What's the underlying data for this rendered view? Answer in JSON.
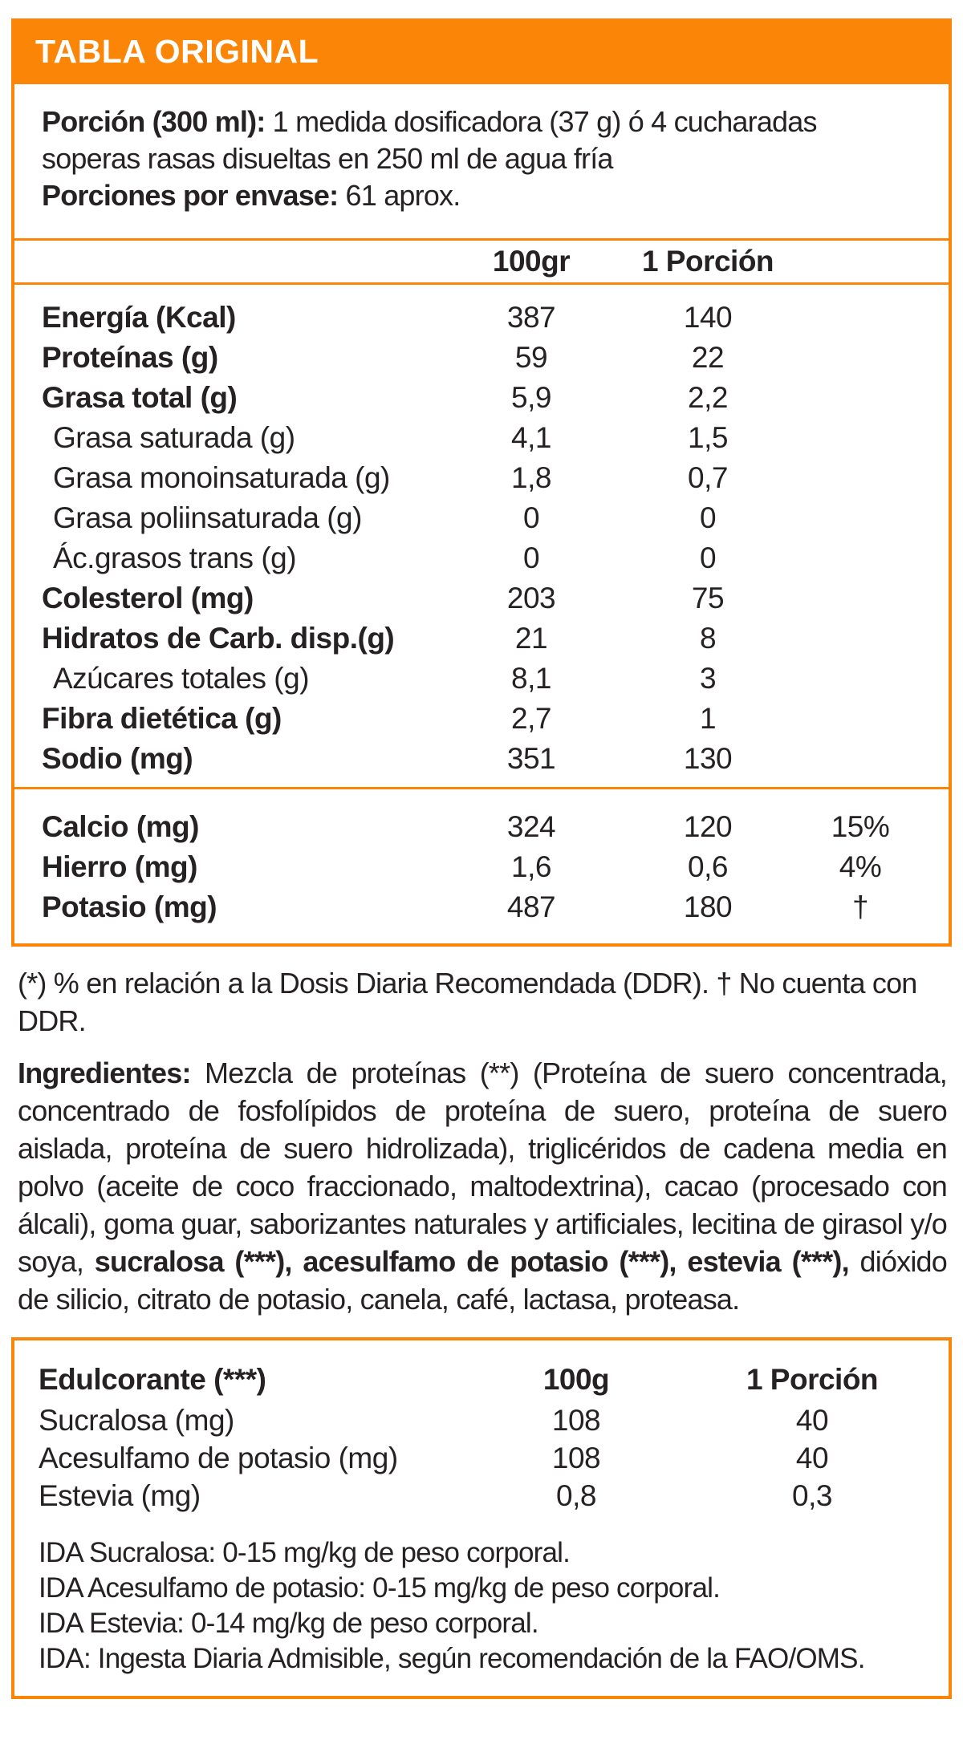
{
  "colors": {
    "accent_orange": "#FA8507",
    "text": "#262223",
    "header_text": "#FFFFFF"
  },
  "header": {
    "title": "TABLA ORIGINAL"
  },
  "serving_info": {
    "paragraphs": [
      [
        {
          "t": "Porción (300 ml):",
          "b": 1
        },
        {
          "t": " 1 medida dosificadora (37 g) ó 4 cucharadas soperas rasas disueltas en 250 ml de agua fría",
          "b": 0
        }
      ],
      [
        {
          "t": "Porciones por envase:",
          "b": 1
        },
        {
          "t": " 61 aprox.",
          "b": 0
        }
      ]
    ]
  },
  "nutrition_table": {
    "columns": {
      "per100": "100gr",
      "perServing": "1 Porción"
    },
    "rows": [
      {
        "label": "Energía (Kcal)",
        "per100": "387",
        "perServing": "140",
        "bold": true,
        "indent": false
      },
      {
        "label": "Proteínas (g)",
        "per100": "59",
        "perServing": "22",
        "bold": true,
        "indent": false
      },
      {
        "label": "Grasa total (g)",
        "per100": "5,9",
        "perServing": "2,2",
        "bold": true,
        "indent": false
      },
      {
        "label": "Grasa saturada (g)",
        "per100": "4,1",
        "perServing": "1,5",
        "bold": false,
        "indent": true
      },
      {
        "label": "Grasa monoinsaturada (g)",
        "per100": "1,8",
        "perServing": "0,7",
        "bold": false,
        "indent": true
      },
      {
        "label": "Grasa poliinsaturada (g)",
        "per100": "0",
        "perServing": "0",
        "bold": false,
        "indent": true
      },
      {
        "label": "Ác.grasos trans (g)",
        "per100": "0",
        "perServing": "0",
        "bold": false,
        "indent": true
      },
      {
        "label": "Colesterol (mg)",
        "per100": "203",
        "perServing": "75",
        "bold": true,
        "indent": false
      },
      {
        "label": "Hidratos de Carb. disp.(g)",
        "per100": "21",
        "perServing": "8",
        "bold": true,
        "indent": false
      },
      {
        "label": "Azúcares totales (g)",
        "per100": "8,1",
        "perServing": "3",
        "bold": false,
        "indent": true
      },
      {
        "label": "Fibra dietética (g)",
        "per100": "2,7",
        "perServing": "1",
        "bold": true,
        "indent": false
      },
      {
        "label": "Sodio (mg)",
        "per100": "351",
        "perServing": "130",
        "bold": true,
        "indent": false
      }
    ],
    "mineral_rows": [
      {
        "label": "Calcio (mg)",
        "per100": "324",
        "perServing": "120",
        "ddr": "15%",
        "bold": true
      },
      {
        "label": "Hierro (mg)",
        "per100": "1,6",
        "perServing": "0,6",
        "ddr": "4%",
        "bold": true
      },
      {
        "label": "Potasio (mg)",
        "per100": "487",
        "perServing": "180",
        "ddr": "†",
        "bold": true
      }
    ]
  },
  "footnote": {
    "text": "(*) % en relación a la Dosis Diaria Recomendada (DDR). † No cuenta con DDR."
  },
  "ingredients": {
    "segments": [
      {
        "t": "Ingredientes:",
        "b": 1
      },
      {
        "t": " Mezcla de proteínas (**) (Proteína de suero concentrada, concentrado de fosfolípidos de proteína de suero, proteína de suero aislada, proteína de suero hidrolizada), triglicéridos de cadena media en polvo (aceite de coco fraccionado, maltodextrina), cacao (procesado con álcali), goma guar, saborizantes naturales y artificiales, lecitina de girasol y/o soya, ",
        "b": 0
      },
      {
        "t": "sucralosa (***), acesulfamo de potasio (***), estevia (***),",
        "b": 1
      },
      {
        "t": " dióxido de silicio, citrato de potasio, canela, café, lactasa, proteasa.",
        "b": 0
      }
    ]
  },
  "sweetener_table": {
    "header": {
      "label": "Edulcorante (***)",
      "per100": "100g",
      "perServing": "1 Porción"
    },
    "rows": [
      {
        "label": "Sucralosa (mg)",
        "per100": "108",
        "perServing": "40"
      },
      {
        "label": "Acesulfamo de potasio (mg)",
        "per100": "108",
        "perServing": "40"
      },
      {
        "label": "Estevia (mg)",
        "per100": "0,8",
        "perServing": "0,3"
      }
    ],
    "notes": [
      "IDA Sucralosa: 0-15 mg/kg de peso corporal.",
      "IDA Acesulfamo de potasio: 0-15 mg/kg de peso corporal.",
      "IDA Estevia: 0-14 mg/kg de peso corporal.",
      "IDA: Ingesta Diaria Admisible, según recomendación de la FAO/OMS."
    ]
  }
}
